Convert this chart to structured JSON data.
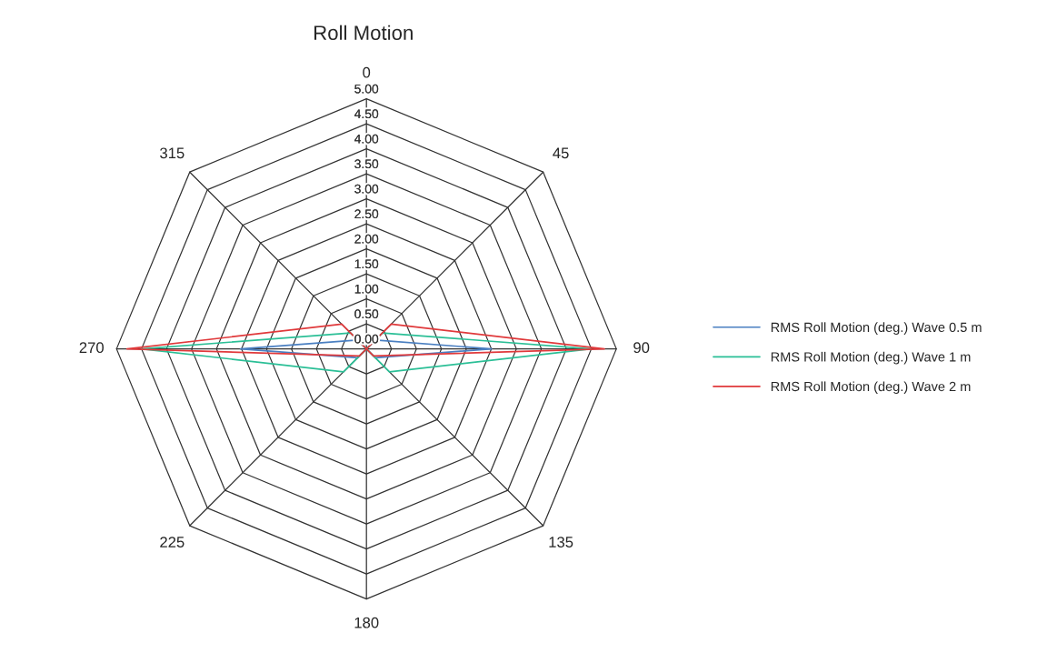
{
  "chart_data": {
    "type": "radar",
    "title": "Roll Motion",
    "categories": [
      "0",
      "45",
      "90",
      "135",
      "180",
      "225",
      "270",
      "315"
    ],
    "series": [
      {
        "name": "RMS Roll Motion (deg.) Wave 0.5 m",
        "color": "#4a7fc1",
        "values": [
          0.0,
          0.25,
          2.5,
          0.25,
          0.0,
          0.25,
          2.52,
          0.25
        ]
      },
      {
        "name": "RMS Roll Motion (deg.) Wave 1 m",
        "color": "#2bbf96",
        "values": [
          0.0,
          0.45,
          4.49,
          0.65,
          0.0,
          0.65,
          4.5,
          0.45
        ]
      },
      {
        "name": "RMS Roll Motion (deg.) Wave 2 m",
        "color": "#e0393b",
        "values": [
          0.0,
          0.7,
          4.76,
          0.2,
          0.0,
          0.2,
          4.79,
          0.7
        ]
      }
    ],
    "ylim": [
      0,
      5
    ],
    "yticks": [
      {
        "value": 0,
        "label": "0.00"
      },
      {
        "value": 0.5,
        "label": "0.50"
      },
      {
        "value": 1,
        "label": "1.00"
      },
      {
        "value": 1.5,
        "label": "1.50"
      },
      {
        "value": 2,
        "label": "2.00"
      },
      {
        "value": 2.5,
        "label": "2.50"
      },
      {
        "value": 3,
        "label": "3.00"
      },
      {
        "value": 3.5,
        "label": "3.50"
      },
      {
        "value": 4,
        "label": "4.00"
      },
      {
        "value": 4.5,
        "label": "4.50"
      },
      {
        "value": 5,
        "label": "5.00"
      }
    ],
    "legend": "right",
    "grid": true
  }
}
